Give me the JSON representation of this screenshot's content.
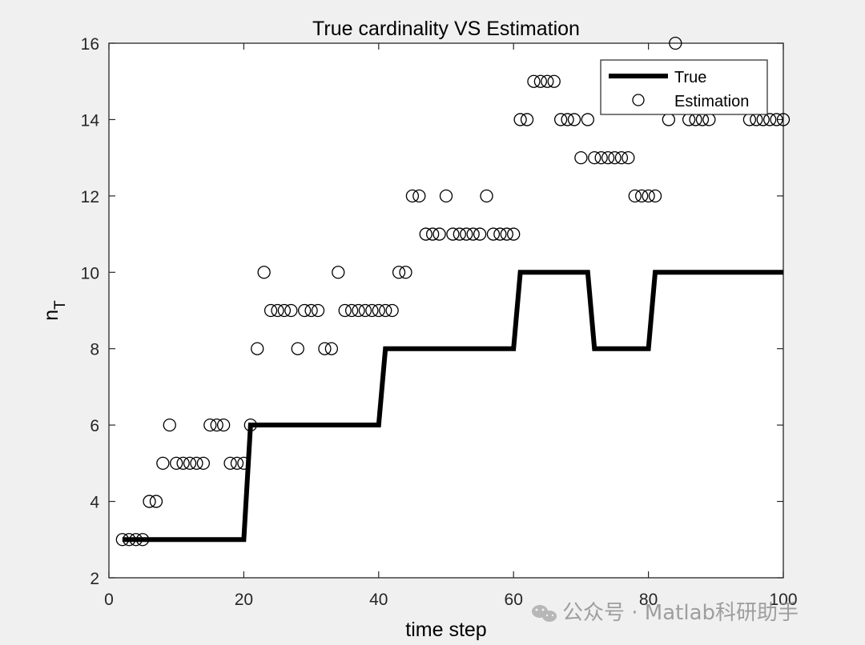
{
  "chart_data": {
    "type": "line",
    "title": "True cardinality VS Estimation",
    "xlabel": "time step",
    "ylabel": "n",
    "ylabel_subscript": "T",
    "xlim": [
      0,
      100
    ],
    "ylim": [
      2,
      16
    ],
    "xticks": [
      0,
      20,
      40,
      60,
      80,
      100
    ],
    "yticks": [
      2,
      4,
      6,
      8,
      10,
      12,
      14,
      16
    ],
    "grid": false,
    "legend_position": "top-right",
    "series": [
      {
        "name": "True",
        "style": "line",
        "color": "#000000",
        "x": [
          2,
          20,
          21,
          40,
          41,
          60,
          61,
          71,
          72,
          80,
          81,
          100
        ],
        "y": [
          3,
          3,
          6,
          6,
          8,
          8,
          10,
          10,
          8,
          8,
          10,
          10
        ]
      },
      {
        "name": "Estimation",
        "style": "marker-circle",
        "color": "#000000",
        "x": [
          2,
          3,
          4,
          5,
          6,
          7,
          8,
          9,
          10,
          11,
          12,
          13,
          14,
          15,
          16,
          17,
          18,
          19,
          20,
          21,
          22,
          23,
          24,
          25,
          26,
          27,
          28,
          29,
          30,
          31,
          32,
          33,
          34,
          35,
          36,
          37,
          38,
          39,
          40,
          41,
          42,
          43,
          44,
          45,
          46,
          47,
          48,
          49,
          50,
          51,
          52,
          53,
          54,
          55,
          56,
          57,
          58,
          59,
          60,
          61,
          62,
          63,
          64,
          65,
          66,
          67,
          68,
          69,
          70,
          71,
          72,
          73,
          74,
          75,
          76,
          77,
          78,
          79,
          80,
          81,
          83,
          84,
          86,
          87,
          88,
          89,
          95,
          96,
          97,
          98,
          99,
          100
        ],
        "y": [
          3,
          3,
          3,
          3,
          4,
          4,
          5,
          6,
          5,
          5,
          5,
          5,
          5,
          6,
          6,
          6,
          5,
          5,
          5,
          6,
          8,
          10,
          9,
          9,
          9,
          9,
          8,
          9,
          9,
          9,
          8,
          8,
          10,
          9,
          9,
          9,
          9,
          9,
          9,
          9,
          9,
          10,
          10,
          12,
          12,
          11,
          11,
          11,
          12,
          11,
          11,
          11,
          11,
          11,
          12,
          11,
          11,
          11,
          11,
          14,
          14,
          15,
          15,
          15,
          15,
          14,
          14,
          14,
          13,
          14,
          13,
          13,
          13,
          13,
          13,
          13,
          12,
          12,
          12,
          12,
          14,
          16,
          14,
          14,
          14,
          14,
          14,
          14,
          14,
          14,
          14,
          14
        ]
      }
    ]
  },
  "watermark": {
    "icon": "wechat-icon",
    "text": "公众号 · Matlab科研助手"
  }
}
